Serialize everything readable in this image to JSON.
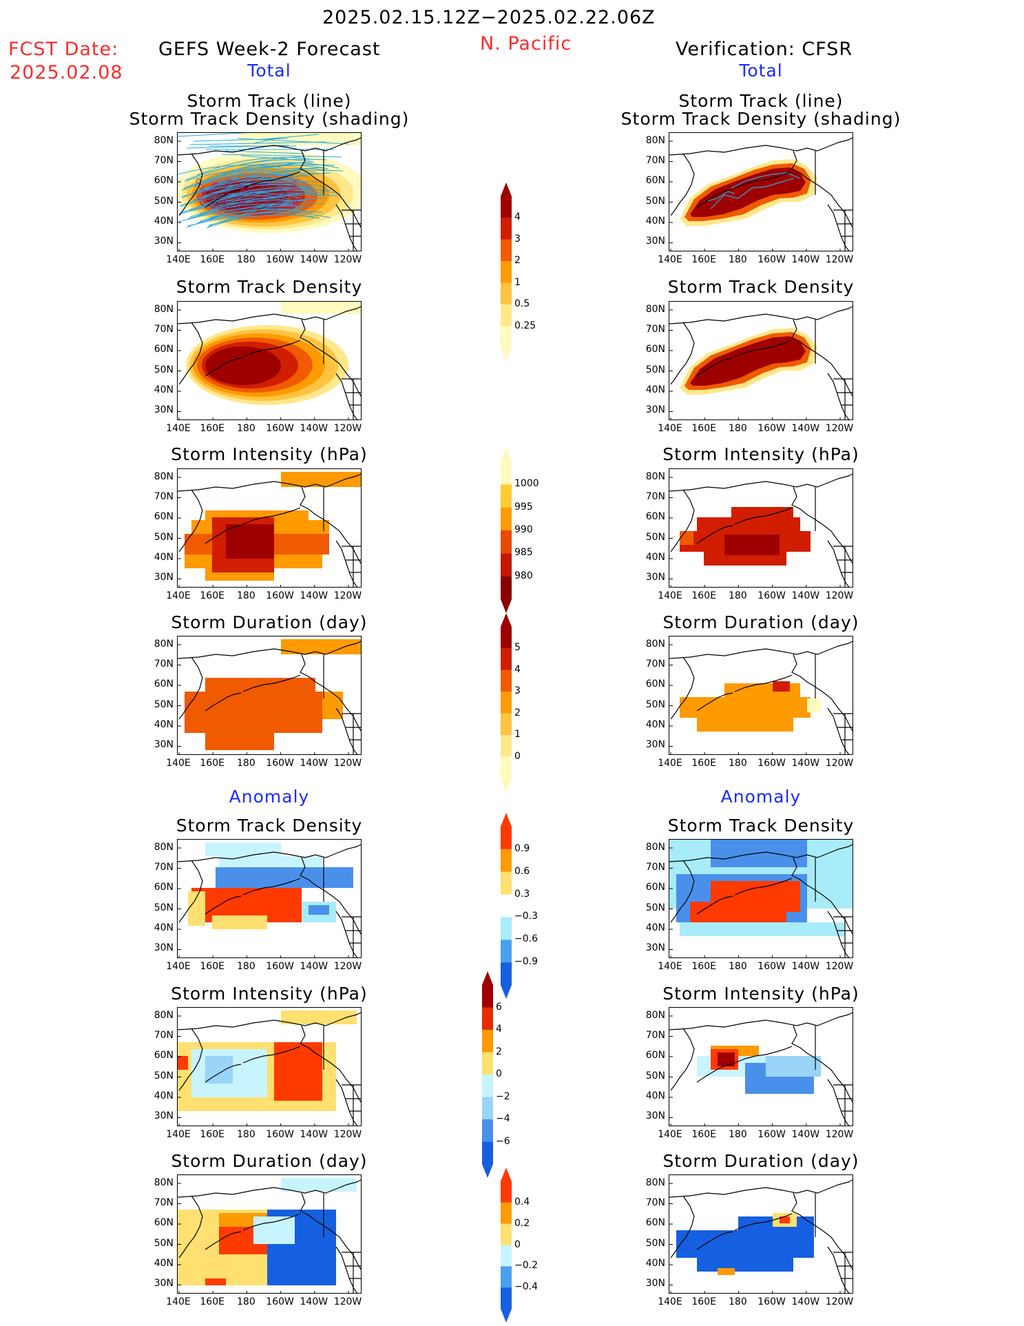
{
  "header": {
    "date_range": "2025.02.15.12Z−2025.02.22.06Z",
    "fcst_label": "FCST Date:",
    "fcst_date": "2025.02.08",
    "left_title": "GEFS Week-2 Forecast",
    "region": "N. Pacific",
    "right_title": "Verification: CFSR",
    "left_total": "Total",
    "right_total": "Total",
    "left_anomaly": "Anomaly",
    "right_anomaly": "Anomaly"
  },
  "panel_titles": {
    "track_line": "Storm Track (line)",
    "track_density_shading": "Storm Track Density (shading)",
    "track_density": "Storm Track Density",
    "intensity": "Storm Intensity (hPa)",
    "duration": "Storm Duration (day)"
  },
  "axes": {
    "lat_labels": [
      "80N",
      "70N",
      "60N",
      "50N",
      "40N",
      "30N"
    ],
    "lon_labels": [
      "140E",
      "160E",
      "180",
      "160W",
      "140W",
      "120W"
    ]
  },
  "colorbars": {
    "density": {
      "labels": [
        "4",
        "3",
        "2",
        "1",
        "0.5",
        "0.25"
      ],
      "colors": [
        "#9e0000",
        "#d11d00",
        "#f05a00",
        "#ff9a00",
        "#ffc340",
        "#ffe88a",
        "#fffabf"
      ]
    },
    "intensity": {
      "labels": [
        "1000",
        "995",
        "990",
        "985",
        "980"
      ],
      "colors": [
        "#fffabf",
        "#ffcc30",
        "#ff9a00",
        "#e84a00",
        "#c41800",
        "#8a0000"
      ]
    },
    "duration": {
      "labels": [
        "5",
        "4",
        "3",
        "2",
        "1",
        "0"
      ],
      "colors": [
        "#9e0000",
        "#d11d00",
        "#f05a00",
        "#ff9a00",
        "#ffc340",
        "#ffe88a",
        "#fffabf"
      ]
    },
    "anom_density": {
      "labels": [
        "0.9",
        "0.6",
        "0.3",
        "−0.3",
        "−0.6",
        "−0.9"
      ],
      "colors": [
        "#ff3a00",
        "#ff9a00",
        "#ffe070",
        "#ffffff",
        "#a8ecfa",
        "#4aa0f0",
        "#1560e0"
      ]
    },
    "anom_intensity": {
      "labels": [
        "6",
        "4",
        "2",
        "0",
        "−2",
        "−4",
        "−6"
      ],
      "colors": [
        "#9e0000",
        "#e82a00",
        "#ff9a00",
        "#ffe070",
        "#c8f4ff",
        "#9ad4f8",
        "#4a90ea",
        "#1560e0"
      ]
    },
    "anom_duration": {
      "labels": [
        "0.4",
        "0.2",
        "0",
        "−0.2",
        "−0.4"
      ],
      "colors": [
        "#ff3a00",
        "#ff9a00",
        "#ffe070",
        "#c8f4ff",
        "#4aa0f0",
        "#1560e0"
      ]
    }
  }
}
